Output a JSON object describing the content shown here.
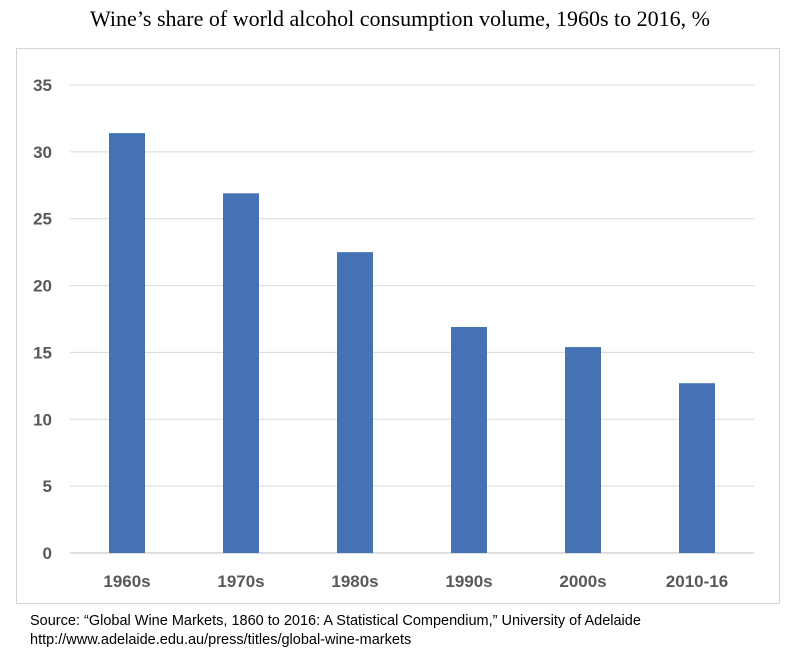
{
  "chart_data": {
    "type": "bar",
    "title": "Wine’s share of world alcohol consumption volume, 1960s to 2016, %",
    "categories": [
      "1960s",
      "1970s",
      "1980s",
      "1990s",
      "2000s",
      "2010-16"
    ],
    "values": [
      31.4,
      26.9,
      22.5,
      16.9,
      15.4,
      12.7
    ],
    "ylim": [
      0,
      35
    ],
    "yticks": [
      "0",
      "5",
      "10",
      "15",
      "20",
      "25",
      "30",
      "35"
    ],
    "xlabel": "",
    "ylabel": "",
    "grid": true,
    "bar_color": "#4472b4",
    "grid_color": "#d9d9d9"
  },
  "source": {
    "line1": "Source: “Global Wine Markets, 1860 to 2016: A Statistical Compendium,” University of Adelaide",
    "line2": "http://www.adelaide.edu.au/press/titles/global-wine-markets"
  }
}
